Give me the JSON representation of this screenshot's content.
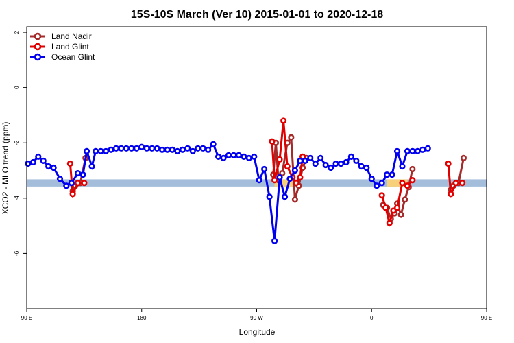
{
  "chart_data": {
    "type": "line",
    "title": "15S-10S March (Ver 10)   2015-01-01 to 2020-12-18",
    "xlabel": "Longitude",
    "ylabel": "XCO2 - MLO trend (ppm)",
    "xlim": [
      90,
      450
    ],
    "ylim": [
      -8,
      2.2
    ],
    "x_ticks": [
      {
        "value": 90,
        "label": "90 E"
      },
      {
        "value": 180,
        "label": "180"
      },
      {
        "value": 270,
        "label": "90 W"
      },
      {
        "value": 360,
        "label": "0"
      },
      {
        "value": 450,
        "label": "90 E"
      },
      {
        "value": 540,
        "label": "180"
      }
    ],
    "y_ticks": [
      {
        "value": 2,
        "label": "2"
      },
      {
        "value": 0,
        "label": "0"
      },
      {
        "value": -2,
        "label": "-2"
      },
      {
        "value": -4,
        "label": "-4"
      },
      {
        "value": -6,
        "label": "-6"
      }
    ],
    "grid": false,
    "legend_position": "top-left",
    "background_band": {
      "y_center": -3.45,
      "y_halfwidth": 0.13,
      "color": "#a3bddb",
      "land_color": "#f6d07a",
      "land_segments": [
        [
          284,
          298
        ],
        [
          372,
          388
        ]
      ]
    },
    "series": [
      {
        "name": "Land Nadir",
        "color": "#a52a2a",
        "points": [
          [
            126,
            -3.75
          ],
          [
            128,
            -3.55
          ],
          [
            132,
            -3.45
          ],
          [
            136,
            -2.55
          ],
          [
            283,
            -3.15
          ],
          [
            285,
            -2.0
          ],
          [
            287,
            -3.35
          ],
          [
            290,
            -3.1
          ],
          [
            294,
            -2.0
          ],
          [
            297,
            -1.8
          ],
          [
            300,
            -4.05
          ],
          [
            303,
            -3.55
          ],
          [
            306,
            -2.9
          ],
          [
            309,
            -2.55
          ],
          [
            369,
            -4.25
          ],
          [
            372,
            -4.35
          ],
          [
            375,
            -4.75
          ],
          [
            378,
            -4.55
          ],
          [
            380,
            -4.2
          ],
          [
            383,
            -4.6
          ],
          [
            386,
            -4.05
          ],
          [
            389,
            -3.6
          ],
          [
            392,
            -2.95
          ],
          [
            422,
            -3.7
          ],
          [
            424,
            -3.55
          ],
          [
            428,
            -3.45
          ],
          [
            432,
            -2.55
          ]
        ]
      },
      {
        "name": "Land Glint",
        "color": "#e00000",
        "points": [
          [
            124,
            -2.75
          ],
          [
            126,
            -3.85
          ],
          [
            130,
            -3.45
          ],
          [
            135,
            -3.45
          ],
          [
            282,
            -1.95
          ],
          [
            284,
            -3.35
          ],
          [
            288,
            -2.6
          ],
          [
            291,
            -1.2
          ],
          [
            294,
            -2.85
          ],
          [
            298,
            -3.25
          ],
          [
            301,
            -3.45
          ],
          [
            304,
            -3.25
          ],
          [
            306,
            -2.5
          ],
          [
            368,
            -3.9
          ],
          [
            371,
            -4.35
          ],
          [
            374,
            -4.9
          ],
          [
            377,
            -4.45
          ],
          [
            380,
            -4.35
          ],
          [
            384,
            -3.45
          ],
          [
            388,
            -3.55
          ],
          [
            392,
            -3.35
          ],
          [
            420,
            -2.75
          ],
          [
            422,
            -3.85
          ],
          [
            426,
            -3.45
          ],
          [
            431,
            -3.45
          ]
        ]
      },
      {
        "name": "Ocean Glint",
        "color": "#0000ee",
        "points": [
          [
            91,
            -2.75
          ],
          [
            95,
            -2.7
          ],
          [
            99,
            -2.5
          ],
          [
            103,
            -2.65
          ],
          [
            107,
            -2.85
          ],
          [
            111,
            -2.9
          ],
          [
            116,
            -3.3
          ],
          [
            121,
            -3.55
          ],
          [
            125,
            -3.45
          ],
          [
            130,
            -3.1
          ],
          [
            134,
            -3.15
          ],
          [
            137,
            -2.3
          ],
          [
            141,
            -2.85
          ],
          [
            144,
            -2.3
          ],
          [
            148,
            -2.3
          ],
          [
            152,
            -2.3
          ],
          [
            156,
            -2.25
          ],
          [
            160,
            -2.2
          ],
          [
            164,
            -2.2
          ],
          [
            168,
            -2.2
          ],
          [
            172,
            -2.2
          ],
          [
            176,
            -2.2
          ],
          [
            180,
            -2.15
          ],
          [
            184,
            -2.2
          ],
          [
            188,
            -2.2
          ],
          [
            192,
            -2.2
          ],
          [
            196,
            -2.25
          ],
          [
            200,
            -2.25
          ],
          [
            204,
            -2.25
          ],
          [
            208,
            -2.3
          ],
          [
            212,
            -2.25
          ],
          [
            216,
            -2.2
          ],
          [
            220,
            -2.3
          ],
          [
            224,
            -2.2
          ],
          [
            228,
            -2.2
          ],
          [
            232,
            -2.25
          ],
          [
            236,
            -2.05
          ],
          [
            240,
            -2.5
          ],
          [
            244,
            -2.55
          ],
          [
            248,
            -2.45
          ],
          [
            252,
            -2.45
          ],
          [
            256,
            -2.45
          ],
          [
            260,
            -2.5
          ],
          [
            264,
            -2.55
          ],
          [
            268,
            -2.5
          ],
          [
            272,
            -3.35
          ],
          [
            276,
            -2.95
          ],
          [
            280,
            -3.95
          ],
          [
            284,
            -5.55
          ],
          [
            288,
            -3.25
          ],
          [
            292,
            -3.95
          ],
          [
            296,
            -3.3
          ],
          [
            300,
            -3.0
          ],
          [
            304,
            -2.65
          ],
          [
            308,
            -2.65
          ],
          [
            312,
            -2.55
          ],
          [
            316,
            -2.75
          ],
          [
            320,
            -2.55
          ],
          [
            324,
            -2.8
          ],
          [
            328,
            -2.9
          ],
          [
            332,
            -2.75
          ],
          [
            336,
            -2.75
          ],
          [
            340,
            -2.7
          ],
          [
            344,
            -2.5
          ],
          [
            348,
            -2.65
          ],
          [
            352,
            -2.85
          ],
          [
            356,
            -2.9
          ],
          [
            360,
            -3.3
          ],
          [
            364,
            -3.55
          ],
          [
            368,
            -3.45
          ],
          [
            372,
            -3.15
          ],
          [
            376,
            -3.15
          ],
          [
            380,
            -2.3
          ],
          [
            384,
            -2.85
          ],
          [
            388,
            -2.3
          ],
          [
            392,
            -2.3
          ],
          [
            396,
            -2.3
          ],
          [
            400,
            -2.25
          ],
          [
            404,
            -2.2
          ]
        ]
      }
    ]
  }
}
